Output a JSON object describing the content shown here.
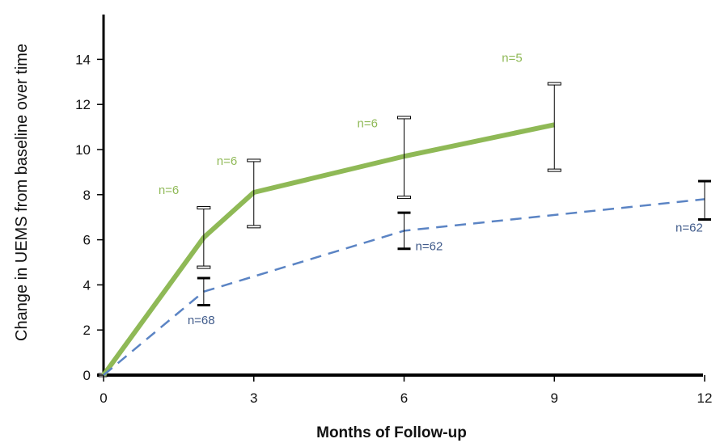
{
  "chart_data": {
    "type": "line",
    "xlabel": "Months of Follow-up",
    "ylabel": "Change in UEMS from baseline over time",
    "x_ticks": [
      0,
      3,
      6,
      9,
      12
    ],
    "y_ticks": [
      0,
      2,
      4,
      6,
      8,
      10,
      12,
      14
    ],
    "xlim": [
      0,
      12
    ],
    "ylim": [
      0,
      16
    ],
    "grid": false,
    "series": [
      {
        "style": "solid",
        "color": "#8fb956",
        "points": [
          {
            "x": 0,
            "y": 0
          },
          {
            "x": 2,
            "y": 6.1,
            "err_low": 4.8,
            "err_high": 7.4,
            "n_label": "n=6"
          },
          {
            "x": 3,
            "y": 8.1,
            "err_low": 6.6,
            "err_high": 9.5,
            "n_label": "n=6"
          },
          {
            "x": 6,
            "y": 9.7,
            "err_low": 7.9,
            "err_high": 11.4,
            "n_label": "n=6"
          },
          {
            "x": 9,
            "y": 11.1,
            "err_low": 9.1,
            "err_high": 12.9,
            "n_label": "n=5"
          }
        ]
      },
      {
        "style": "dashed",
        "color": "#5b84c4",
        "points": [
          {
            "x": 0,
            "y": 0
          },
          {
            "x": 2,
            "y": 3.7,
            "err_low": 3.1,
            "err_high": 4.3,
            "n_label": "n=68"
          },
          {
            "x": 6,
            "y": 6.4,
            "err_low": 5.6,
            "err_high": 7.2,
            "n_label": "n=62"
          },
          {
            "x": 12,
            "y": 7.8,
            "err_low": 6.9,
            "err_high": 8.6,
            "n_label": "n=62"
          }
        ]
      }
    ]
  }
}
